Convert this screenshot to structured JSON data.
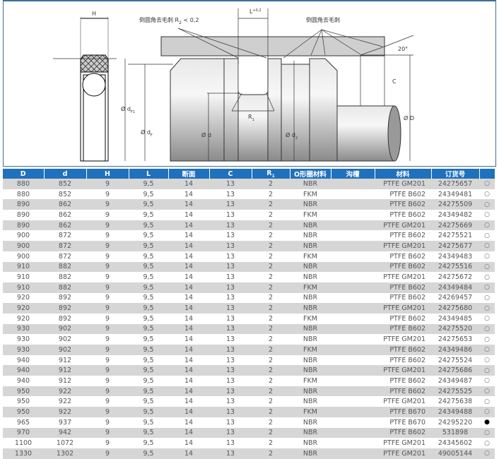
{
  "diagram": {
    "labels": {
      "H": "H",
      "chamfer_left": "倒圆角去毛刺 R",
      "chamfer_left_sub": "2",
      "chamfer_left_suffix": " < 0,2",
      "L": "L",
      "L_tol": "+0,2",
      "chamfer_right": "倒圆角去毛刺",
      "angle": "20°",
      "C": "C",
      "dF1": "Ø d",
      "dF1_sub": "F1",
      "dF": "Ø d",
      "dF_sub": "F",
      "d": "Ø d",
      "d2": "Ø d",
      "d2_sub": "2",
      "R1": "R",
      "R1_sub": "1",
      "D": "Ø D"
    }
  },
  "table": {
    "headers": [
      "D",
      "d",
      "H",
      "L",
      "断面",
      "C",
      "R1",
      "O形圈材料",
      "沟槽",
      "材料",
      "订货号",
      ""
    ],
    "rows": [
      [
        "880",
        "852",
        "9",
        "9,5",
        "14",
        "13",
        "2",
        "NBR",
        "",
        "PTFE GM201",
        "24275657",
        "○"
      ],
      [
        "880",
        "852",
        "9",
        "9,5",
        "14",
        "13",
        "2",
        "FKM",
        "",
        "PTFE B602",
        "24349481",
        "○"
      ],
      [
        "890",
        "862",
        "9",
        "9,5",
        "14",
        "13",
        "2",
        "NBR",
        "",
        "PTFE B602",
        "24275509",
        "○"
      ],
      [
        "890",
        "862",
        "9",
        "9,5",
        "14",
        "13",
        "2",
        "FKM",
        "",
        "PTFE B602",
        "24349482",
        "○"
      ],
      [
        "890",
        "862",
        "9",
        "9,5",
        "14",
        "13",
        "2",
        "NBR",
        "",
        "PTFE GM201",
        "24275669",
        "○"
      ],
      [
        "900",
        "872",
        "9",
        "9,5",
        "14",
        "13",
        "2",
        "NBR",
        "",
        "PTFE B602",
        "24275521",
        "○"
      ],
      [
        "900",
        "872",
        "9",
        "9,5",
        "14",
        "13",
        "2",
        "NBR",
        "",
        "PTFE GM201",
        "24275677",
        "○"
      ],
      [
        "900",
        "872",
        "9",
        "9,5",
        "14",
        "13",
        "2",
        "FKM",
        "",
        "PTFE B602",
        "24349483",
        "○"
      ],
      [
        "910",
        "882",
        "9",
        "9,5",
        "14",
        "13",
        "2",
        "NBR",
        "",
        "PTFE B602",
        "24275516",
        "○"
      ],
      [
        "910",
        "882",
        "9",
        "9,5",
        "14",
        "13",
        "2",
        "NBR",
        "",
        "PTFE GM201",
        "24275672",
        "○"
      ],
      [
        "910",
        "882",
        "9",
        "9,5",
        "14",
        "13",
        "2",
        "FKM",
        "",
        "PTFE B602",
        "24349484",
        "○"
      ],
      [
        "920",
        "892",
        "9",
        "9,5",
        "14",
        "13",
        "2",
        "NBR",
        "",
        "PTFE B602",
        "24269457",
        "○"
      ],
      [
        "920",
        "892",
        "9",
        "9,5",
        "14",
        "13",
        "2",
        "NBR",
        "",
        "PTFE GM201",
        "24275680",
        "○"
      ],
      [
        "920",
        "892",
        "9",
        "9,5",
        "14",
        "13",
        "2",
        "FKM",
        "",
        "PTFE B602",
        "24349485",
        "○"
      ],
      [
        "930",
        "902",
        "9",
        "9,5",
        "14",
        "13",
        "2",
        "NBR",
        "",
        "PTFE B602",
        "24275520",
        "○"
      ],
      [
        "930",
        "902",
        "9",
        "9,5",
        "14",
        "13",
        "2",
        "NBR",
        "",
        "PTFE GM201",
        "24275653",
        "○"
      ],
      [
        "930",
        "902",
        "9",
        "9,5",
        "14",
        "13",
        "2",
        "FKM",
        "",
        "PTFE B602",
        "24349486",
        "○"
      ],
      [
        "940",
        "912",
        "9",
        "9,5",
        "14",
        "13",
        "2",
        "NBR",
        "",
        "PTFE B602",
        "24275524",
        "○"
      ],
      [
        "940",
        "912",
        "9",
        "9,5",
        "14",
        "13",
        "2",
        "NBR",
        "",
        "PTFE GM201",
        "24275686",
        "○"
      ],
      [
        "940",
        "912",
        "9",
        "9,5",
        "14",
        "13",
        "2",
        "FKM",
        "",
        "PTFE B602",
        "24349487",
        "○"
      ],
      [
        "950",
        "922",
        "9",
        "9,5",
        "14",
        "13",
        "2",
        "NBR",
        "",
        "PTFE B602",
        "24275525",
        "○"
      ],
      [
        "950",
        "922",
        "9",
        "9,5",
        "14",
        "13",
        "2",
        "NBR",
        "",
        "PTFE GM201",
        "24275638",
        "○"
      ],
      [
        "950",
        "922",
        "9",
        "9,5",
        "14",
        "13",
        "2",
        "FKM",
        "",
        "PTFE B670",
        "24349488",
        "○"
      ],
      [
        "965",
        "937",
        "9",
        "9,5",
        "14",
        "13",
        "2",
        "NBR",
        "",
        "PTFE B670",
        "24295220",
        "●"
      ],
      [
        "970",
        "942",
        "9",
        "9,5",
        "14",
        "13",
        "2",
        "NBR",
        "",
        "PTFE B602",
        "531898",
        "○"
      ],
      [
        "1100",
        "1072",
        "9",
        "9,5",
        "14",
        "13",
        "2",
        "NBR",
        "",
        "PTFE GM201",
        "24345602",
        "○"
      ],
      [
        "1330",
        "1302",
        "9",
        "9,5",
        "14",
        "13",
        "2",
        "NBR",
        "",
        "PTFE GM201",
        "49005144",
        "○"
      ]
    ]
  },
  "colors": {
    "header_bg": "#1f70bd",
    "row_alt": "#d6d6d6"
  }
}
